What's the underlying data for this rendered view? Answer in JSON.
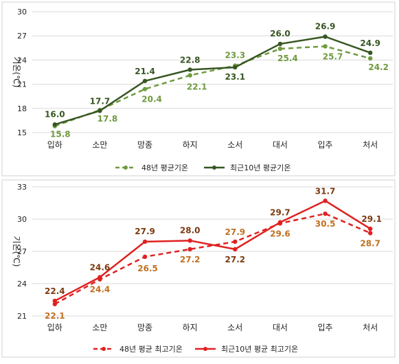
{
  "chart_data": [
    {
      "type": "line",
      "categories": [
        "입하",
        "소만",
        "망종",
        "하지",
        "소서",
        "대서",
        "입추",
        "처서"
      ],
      "ylabel": "기온(℃)",
      "ylim": [
        15,
        30
      ],
      "yticks": [
        15,
        18,
        21,
        24,
        27,
        30
      ],
      "grid": true,
      "legend": "bottom",
      "series": [
        {
          "name": "48년 평균기온",
          "values": [
            15.8,
            17.8,
            20.4,
            22.1,
            23.3,
            25.4,
            25.7,
            24.2
          ],
          "color": "#6f9a3f",
          "dashed": true
        },
        {
          "name": "최근10년 평균기온",
          "values": [
            16.0,
            17.7,
            21.4,
            22.8,
            23.1,
            26.0,
            26.9,
            24.9
          ],
          "color": "#375623",
          "dashed": false
        }
      ]
    },
    {
      "type": "line",
      "categories": [
        "입하",
        "소만",
        "망종",
        "하지",
        "소서",
        "대서",
        "입추",
        "처서"
      ],
      "ylabel": "기온(℃)",
      "ylim": [
        21,
        33
      ],
      "yticks": [
        21,
        24,
        27,
        30,
        33
      ],
      "grid": true,
      "legend": "bottom",
      "series": [
        {
          "name": "48년 평균 최고기온",
          "values": [
            22.1,
            24.4,
            26.5,
            27.2,
            27.9,
            29.6,
            30.5,
            28.7
          ],
          "color": "#e02020",
          "dashed": true,
          "label_color": "#c07020"
        },
        {
          "name": "최근10년 평균 최고기온",
          "values": [
            22.4,
            24.6,
            27.9,
            28.0,
            27.2,
            29.7,
            31.7,
            29.1
          ],
          "color": "#e02020",
          "dashed": false,
          "label_color": "#7b3a10"
        }
      ]
    }
  ]
}
